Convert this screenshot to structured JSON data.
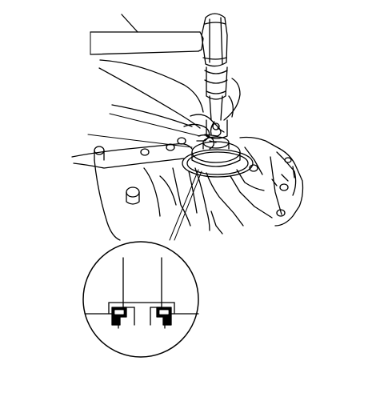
{
  "figure": {
    "description_present": false,
    "ink_color": "#000000",
    "background_color": "#ffffff",
    "parts": [
      "hammer",
      "hand",
      "driver-handle",
      "driver-attachment",
      "oil-seal",
      "transmission-housing",
      "detail-magnifier"
    ]
  }
}
